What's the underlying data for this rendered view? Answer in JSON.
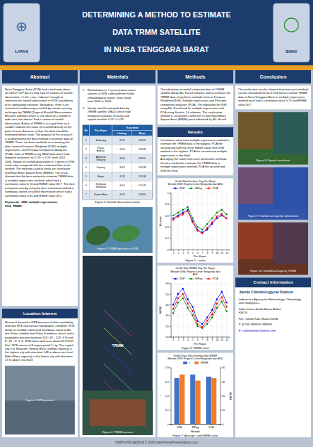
{
  "poster": {
    "title_lines": [
      "DETERMINING A METHOD TO ESTIMATE",
      "DATA TRMM SATELLITE",
      "IN NUSA TENGGARA BARAT"
    ],
    "header_bg": "#1c3c6e",
    "header_text_color": "#ffffff",
    "orange_stripe_color": "#e8a020",
    "body_bg": "#b8c4d4",
    "panel_bg": "#ffffff",
    "section_header_bg": "#1c3c6e",
    "section_header_color": "#ffffff",
    "logo_left": {
      "icon": "⊕",
      "label": "LAPAN"
    },
    "logo_right": {
      "label": "BMKG"
    },
    "section_titles": [
      "Abstract",
      "Materials",
      "Methods",
      "Conclusion"
    ],
    "abstract_text": "Nusa Tenggara Barat (NTB) had a land area about 20,153.07 Km² but it's only had 57 stations of rainfall observation. In this case, it doesn't enough to represent the rainfall observation in NTB considering of its topography variation. Nowadays, there is an instrument to observing a rainfall by remote sensing technique by TRMM (Tropical Rainfall Measurement Mission) satellites which is can observe a rainfall in wide area that doesn't had a station of rainfall observation. A data of TRMM is in a grid form so it couldn't indicate the value of a rainfall directly at the point of area. Because of that, the data should be estimated before used. The purpose of this research is to determining the best method to estimate data of TRMM. There are three methods to estimating the data, Inverse Distance Weighted (IDW), multiple regressions, and Principal Component Analyses (PCA). Data of TRMM using 3B42 data which had temporal resolution for 0.25° x 0.25° from 2001 - 2006. Station of rainfall observation in 7 points in NTB used to be compared with the estimated data to be verified. The methods used to verify are correlation and Root Mean Square Error (RMSE). The result showed that the best method to estimate TRMM data is multiple regressions method, which had a correlation value 0.70 and RMSE value 30.7. The best estimated area by using the best estimated method is Sumbawa station of rainfall observation which had a correlation value 0.61 and RMSE value 29.1.",
    "keywords_text": "Keywords:  IDW, multiple regressions,\nPCA, TRMM",
    "location_title": "Location Interest",
    "location_text": "Research located in NTB because of data availability and also NTB had various topographic condition. NTB divide to Lombok island and Sumbawa island terdiri dari Pulau Lombok dan Pulau Sumbawa, which had a geographic position between 115° 40' - 119° 5' E and 8° 10' - 9° 5' S. NTB had a land area about 20,153.07 Km². NTB consist of 8 regency and 2 city. The capital city is in Mataram. Selong (East Lombok regency) is the highest city with elevation 148 m above sea level. Baba (Bima regency) is the lowest city with elevation 13 m above sea level.",
    "fig1_caption": "Figure 1: NTB province",
    "materials_text1": "1.   Rainfall data in 7 (seven) observation\n      stations in NTB collected from Kediri\n      climatologycal station. Data range\n      from 2001 to 2006.",
    "materials_text2": "2.   Hourly rainfall estimated data by\n      TRMM satellite (3B42) which had\n      temporal resolution 3 hourly and\n      saptial resolute 0.25° x 0.25°.",
    "table": {
      "headers": [
        "No",
        "Pos Hujan",
        "Koordinat"
      ],
      "subheaders": [
        "Lintang",
        "Bujur"
      ],
      "rows": [
        [
          "1",
          "Suberang",
          "-8.76",
          "116.05"
        ],
        [
          "2",
          "Praya-\nAibesar",
          "-8.60",
          "116.28"
        ],
        [
          "3",
          "Ampenan\nSelajang",
          "-8.58",
          "116.10"
        ],
        [
          "4",
          "Kopang",
          "-8.63",
          "116.38"
        ],
        [
          "5",
          "Mapin",
          "-8.78",
          "116.38"
        ],
        [
          "6",
          "Sumbawa\nSumbawa",
          "-8.44",
          "117.42"
        ],
        [
          "7",
          "Stamet Bima",
          "-8.33",
          "118.69"
        ]
      ]
    },
    "fig2_caption": "Figure 2: Rainfall observation station",
    "fig3_caption": "Figure 3: TRMM grid data in NTB",
    "sat_label": "TRMM",
    "fig4_caption": "Figure 4: TRMM sensors",
    "methods_text": "The tabulation of rainfall estimated data of TRMM satellite did by Ms. Excell software and to estimate the TRMM data using three methods Inverse Distance Weighted (IDW), multiple regressions and Principal component analyses (PCA). The tabulation for IDW using Ms. Excell and for multiple regressions and PCA using Statistic 14 software. The verification method is correlation coefficient (r) dan Root Mean Square Error (RMSE) each tabulated by Ms. Excell.",
    "results_title": "Results",
    "results_text": "Correlation value from multiple regressions method to estimate the TRMM data is the biggest, PCA the second and IDW the third. RMSE value from IDW method is the highest, PCA the second and multiple regressions is the third.\nAveraging the value from each verification methods, the best method to estimate the TRMM data is multiple regressions method, PCA the second and IDW the third.",
    "conclusion_text": "The verification results showed that from each method can be concluded the best method to estimate TRMM data in Nusa Tenggara Barat is multiple regressions method each had a correlation value 0.70 and RMSE value 30.7.",
    "map_captions": [
      "Figure 8: Spatial correlation",
      "Figure 9: Rainfall average by observation",
      "Figure 10: Rainfall average by TRMM"
    ],
    "contact_title": "Contact Information",
    "contact_station": "Jambi Climatologycal Station",
    "contact_agency": "Indonesian Agency for Meteorology, Climatology\nand Geophysics",
    "contact_address": "Jalan Lintas Jambi Muara Bulian\nKM 15",
    "contact_city": "Kec. Jaluko Kab. Muaro Jambi",
    "contact_phone": "T: (0741) 583500/ 583555",
    "contact_email": "E: staklimjambi@yahoo.com",
    "footer_text": "TEMPLATE DESIGN © 2008 www.PosterPresentations.com"
  },
  "chart_data": [
    {
      "type": "line",
      "title": "Grafik Nilai Korelasi Tiap Per Bujan\nMetode IDW, Regresi Linier Berganda dan AKU",
      "x": [
        1,
        2,
        3,
        4,
        5,
        6,
        7,
        8,
        9,
        10,
        11,
        12
      ],
      "xlabel": "Per Hujan",
      "ylabel": "Korelasi",
      "xlim": [
        0.5,
        12.5
      ],
      "xticks": [
        1,
        2,
        3,
        4,
        5,
        6,
        7,
        8,
        9,
        10,
        11,
        12
      ],
      "ylim": [
        0,
        1
      ],
      "yticks": [
        0,
        0.2,
        0.4,
        0.6,
        0.8,
        1
      ],
      "grid": true,
      "legend": "top",
      "marker": "circle",
      "series": [
        {
          "name": "IDW",
          "color": "#0000ff",
          "values": [
            0.55,
            0.6,
            0.65,
            0.7,
            0.5,
            0.35,
            0.3,
            0.35,
            0.45,
            0.55,
            0.6,
            0.55
          ]
        },
        {
          "name": "MReg",
          "color": "#008000",
          "values": [
            0.6,
            0.65,
            0.7,
            0.75,
            0.55,
            0.4,
            0.35,
            0.45,
            0.55,
            0.65,
            0.7,
            0.62
          ]
        },
        {
          "name": "PCA",
          "color": "#ff0000",
          "values": [
            0.52,
            0.58,
            0.62,
            0.68,
            0.48,
            0.33,
            0.28,
            0.38,
            0.48,
            0.58,
            0.63,
            0.55
          ]
        }
      ],
      "caption": "Figure 5: r value"
    },
    {
      "type": "line",
      "title": "Grafik Nilai RMSE Tiap Per Bujan\nMetode IDW, Regresi Linier Berganda dan\nAKU",
      "x": [
        1,
        2,
        3,
        4,
        5,
        6,
        7,
        8,
        9,
        10,
        11,
        12
      ],
      "xlabel": "Per Hujan",
      "ylabel": "RMSE",
      "xlim": [
        0.5,
        12.5
      ],
      "xticks": [
        1,
        2,
        3,
        4,
        5,
        6,
        7,
        8,
        9,
        10,
        11,
        12
      ],
      "ylim": [
        10,
        60
      ],
      "yticks": [
        10,
        20,
        30,
        40,
        50,
        60
      ],
      "grid": true,
      "legend": "top",
      "marker": "circle",
      "series": [
        {
          "name": "IDW",
          "color": "#0000ff",
          "values": [
            40,
            50,
            55,
            45,
            38,
            25,
            22,
            28,
            35,
            45,
            52,
            42
          ]
        },
        {
          "name": "MReg",
          "color": "#008000",
          "values": [
            32,
            42,
            46,
            37,
            30,
            20,
            18,
            22,
            28,
            37,
            43,
            34
          ]
        },
        {
          "name": "PCA",
          "color": "#ff0000",
          "values": [
            36,
            46,
            50,
            41,
            34,
            22,
            19,
            25,
            31,
            41,
            47,
            38
          ]
        }
      ],
      "caption": "Figure 6: RMSE value"
    },
    {
      "type": "bar",
      "title": "Grafik Rata-Rata Korelasi dan RMSE\nMetode IDW, Regresi Linier Berganda dan AKU",
      "categories": [
        "IDW",
        "MReg",
        "PCA"
      ],
      "xlabel": "Metode",
      "ylabel": "r",
      "y2label": "RMSE",
      "ylim": [
        0,
        0.8
      ],
      "yticks": [
        0,
        0.2,
        0.4,
        0.6,
        0.8
      ],
      "y2lim": [
        0,
        40
      ],
      "y2ticks": [
        0,
        10,
        20,
        30,
        40
      ],
      "grid": false,
      "legend": "top",
      "series": [
        {
          "name": "r",
          "color": "#4472c4",
          "values": [
            0.65,
            0.7,
            0.67
          ]
        },
        {
          "name": "RMSE",
          "color": "#ed7d31",
          "axis": "y2",
          "values": [
            35.0,
            30.7,
            32.5
          ]
        }
      ],
      "caption": "Figure 7: Average r and RMSE value"
    }
  ]
}
